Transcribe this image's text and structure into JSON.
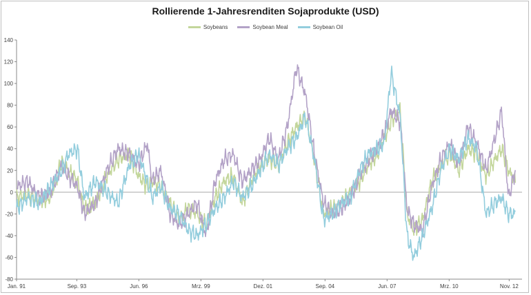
{
  "chart_data": {
    "type": "line",
    "title": "Rollierende 1-Jahresrenditen Sojaprodukte (USD)",
    "xlabel": "",
    "ylabel": "",
    "ylim": [
      -80,
      140
    ],
    "yticks": [
      -80,
      -60,
      -40,
      -20,
      0,
      20,
      40,
      60,
      80,
      100,
      120,
      140
    ],
    "x_tick_labels": [
      "Jan. 91",
      "Sep. 93",
      "Jun. 96",
      "Mrz. 99",
      "Dez. 01",
      "Sep. 04",
      "Jun. 07",
      "Mrz. 10",
      "Nov. 12"
    ],
    "x_tick_years": [
      1991.0,
      1993.67,
      1996.42,
      1999.17,
      2001.92,
      2004.67,
      2007.42,
      2010.17,
      2012.83
    ],
    "xlim": [
      1991.0,
      2013.4
    ],
    "legend_position": "top",
    "grid": "horizontal-only-zero-line",
    "series": [
      {
        "name": "Soybeans",
        "color": "#c3d69b",
        "x": [
          1991.0,
          1991.5,
          1992.0,
          1992.5,
          1993.0,
          1993.3,
          1993.7,
          1994.0,
          1994.5,
          1995.0,
          1995.5,
          1996.0,
          1996.4,
          1996.8,
          1997.0,
          1997.4,
          1997.8,
          1998.2,
          1998.6,
          1999.0,
          1999.4,
          1999.8,
          2000.2,
          2000.6,
          2001.0,
          2001.4,
          2001.8,
          2002.2,
          2002.6,
          2003.0,
          2003.4,
          2003.8,
          2004.2,
          2004.6,
          2005.0,
          2005.4,
          2005.8,
          2006.2,
          2006.6,
          2007.0,
          2007.3,
          2007.6,
          2008.0,
          2008.3,
          2008.6,
          2009.0,
          2009.4,
          2009.8,
          2010.2,
          2010.6,
          2011.0,
          2011.4,
          2011.8,
          2012.2,
          2012.5,
          2012.8,
          2013.1
        ],
        "values": [
          -5,
          -2,
          -8,
          -5,
          28,
          20,
          10,
          -15,
          -10,
          15,
          30,
          35,
          15,
          5,
          10,
          5,
          -10,
          -25,
          -15,
          -20,
          -30,
          -5,
          10,
          15,
          -10,
          10,
          25,
          30,
          25,
          45,
          60,
          70,
          30,
          -20,
          -15,
          -10,
          0,
          10,
          25,
          35,
          50,
          65,
          75,
          -20,
          -35,
          -25,
          10,
          25,
          35,
          20,
          40,
          35,
          15,
          30,
          40,
          20,
          10
        ]
      },
      {
        "name": "Soybean Meal",
        "color": "#b3a2c7",
        "x": [
          1991.0,
          1991.5,
          1992.0,
          1992.5,
          1993.0,
          1993.3,
          1993.7,
          1994.0,
          1994.5,
          1995.0,
          1995.5,
          1996.0,
          1996.4,
          1996.8,
          1997.0,
          1997.4,
          1997.8,
          1998.2,
          1998.6,
          1999.0,
          1999.4,
          1999.8,
          2000.2,
          2000.6,
          2001.0,
          2001.4,
          2001.8,
          2002.2,
          2002.6,
          2003.0,
          2003.4,
          2003.8,
          2004.2,
          2004.6,
          2005.0,
          2005.4,
          2005.8,
          2006.2,
          2006.6,
          2007.0,
          2007.3,
          2007.6,
          2008.0,
          2008.3,
          2008.6,
          2009.0,
          2009.4,
          2009.8,
          2010.2,
          2010.6,
          2011.0,
          2011.4,
          2011.8,
          2012.2,
          2012.5,
          2012.8,
          2013.1
        ],
        "values": [
          5,
          10,
          -5,
          0,
          25,
          15,
          5,
          -20,
          -10,
          20,
          40,
          35,
          25,
          45,
          10,
          20,
          -20,
          -30,
          -20,
          -10,
          -40,
          10,
          30,
          35,
          10,
          20,
          30,
          50,
          30,
          60,
          115,
          90,
          35,
          -10,
          -20,
          -15,
          -5,
          15,
          30,
          40,
          55,
          75,
          65,
          -15,
          -30,
          -35,
          5,
          30,
          45,
          25,
          60,
          45,
          20,
          50,
          75,
          -5,
          20
        ]
      },
      {
        "name": "Soybean Oil",
        "color": "#93cddd",
        "x": [
          1991.0,
          1991.5,
          1992.0,
          1992.5,
          1993.0,
          1993.3,
          1993.7,
          1994.0,
          1994.5,
          1995.0,
          1995.5,
          1996.0,
          1996.4,
          1996.8,
          1997.0,
          1997.4,
          1997.8,
          1998.2,
          1998.6,
          1999.0,
          1999.4,
          1999.8,
          2000.2,
          2000.6,
          2001.0,
          2001.4,
          2001.8,
          2002.2,
          2002.6,
          2003.0,
          2003.4,
          2003.8,
          2004.2,
          2004.6,
          2005.0,
          2005.4,
          2005.8,
          2006.2,
          2006.6,
          2007.0,
          2007.3,
          2007.6,
          2008.0,
          2008.3,
          2008.6,
          2009.0,
          2009.4,
          2009.8,
          2010.2,
          2010.6,
          2011.0,
          2011.4,
          2011.8,
          2012.2,
          2012.5,
          2012.8,
          2013.1
        ],
        "values": [
          -15,
          -5,
          -10,
          5,
          20,
          35,
          40,
          -5,
          10,
          0,
          -10,
          25,
          35,
          10,
          -5,
          5,
          -15,
          -20,
          -35,
          -40,
          -30,
          -15,
          -5,
          10,
          -5,
          5,
          20,
          35,
          25,
          40,
          50,
          70,
          30,
          -25,
          -20,
          -10,
          -5,
          20,
          35,
          40,
          45,
          110,
          70,
          -40,
          -60,
          -40,
          -15,
          20,
          40,
          30,
          50,
          40,
          -20,
          -10,
          -5,
          -20,
          -20
        ]
      }
    ]
  }
}
